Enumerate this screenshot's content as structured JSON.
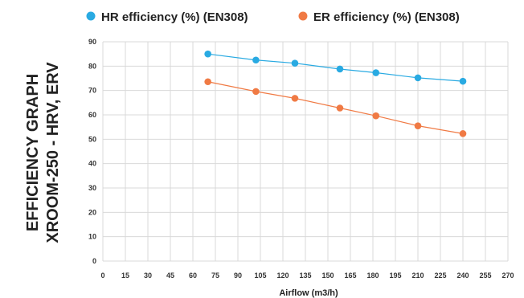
{
  "chart_data": {
    "type": "line",
    "title_lines": [
      "EFFICIENCY GRAPH",
      "XROOM-250 - HRV, ERV"
    ],
    "xlabel": "Airflow (m3/h)",
    "ylabel": "",
    "xlim": [
      0,
      270
    ],
    "ylim": [
      0,
      90
    ],
    "x_ticks": [
      0,
      15,
      30,
      45,
      60,
      75,
      90,
      105,
      120,
      135,
      150,
      165,
      180,
      195,
      210,
      225,
      240,
      255,
      270
    ],
    "y_ticks": [
      0,
      10,
      20,
      30,
      40,
      50,
      60,
      70,
      80,
      90
    ],
    "grid": true,
    "legend_position": "top",
    "series": [
      {
        "name": "HR efficiency (%) (EN308)",
        "color": "#29aae2",
        "x": [
          70,
          102,
          128,
          158,
          182,
          210,
          240
        ],
        "y": [
          85,
          82.5,
          81.2,
          78.8,
          77.3,
          75.2,
          73.8
        ]
      },
      {
        "name": "ER efficiency (%) (EN308)",
        "color": "#f07a44",
        "x": [
          70,
          102,
          128,
          158,
          182,
          210,
          240
        ],
        "y": [
          73.6,
          69.6,
          66.8,
          62.8,
          59.6,
          55.5,
          52.3
        ]
      }
    ]
  }
}
